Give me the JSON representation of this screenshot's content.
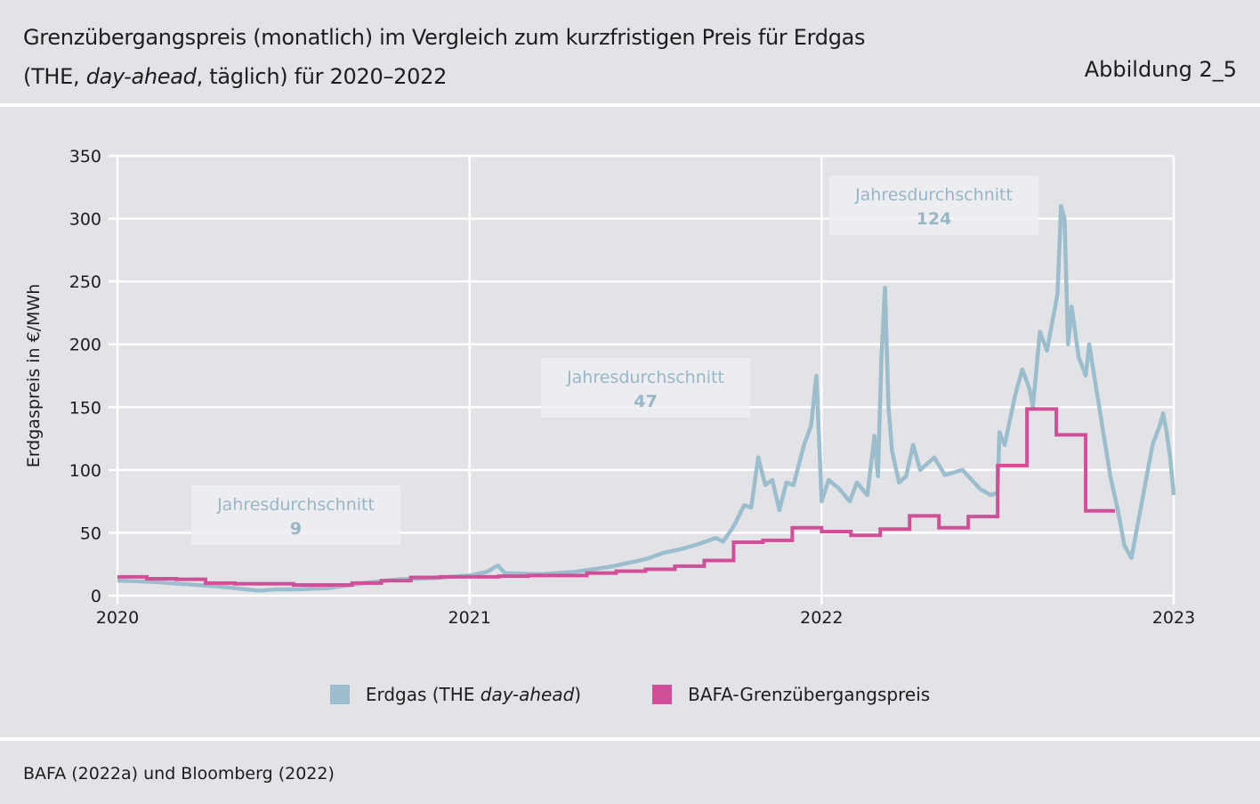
{
  "header": {
    "title_line1": "Grenzübergangspreis (monatlich) im Vergleich zum kurzfristigen Preis für Erdgas",
    "title_line2_pre": "(THE, ",
    "title_line2_italic": "day-ahead",
    "title_line2_post": ", täglich) für 2020–2022",
    "figure_label": "Abbildung 2_5"
  },
  "footer": {
    "source": "BAFA (2022a) und Bloomberg (2022)"
  },
  "legend": {
    "erdgas_pre": "Erdgas (THE ",
    "erdgas_italic": "day-ahead",
    "erdgas_post": ")",
    "bafa": "BAFA-Grenzübergangspreis"
  },
  "colors": {
    "erdgas": "#9bbdcc",
    "bafa": "#d24f97",
    "grid": "#ffffff"
  },
  "chart_data": {
    "type": "line",
    "ylabel": "Erdgaspreis in €/MWh",
    "ylim": [
      0,
      350
    ],
    "yticks": [
      "0",
      "50",
      "100",
      "150",
      "200",
      "250",
      "300",
      "350"
    ],
    "xlim": [
      2020,
      2023
    ],
    "xticks": [
      "2020",
      "2021",
      "2022",
      "2023"
    ],
    "annotations": [
      {
        "label": "Jahresdurchschnitt",
        "value": "9",
        "year": 2020
      },
      {
        "label": "Jahresdurchschnitt",
        "value": "47",
        "year": 2021
      },
      {
        "label": "Jahresdurchschnitt",
        "value": "124",
        "year": 2022
      }
    ],
    "series": [
      {
        "name": "Erdgas (THE day-ahead)",
        "type": "line",
        "x": [
          2020,
          2020.1,
          2020.2,
          2020.3,
          2020.4,
          2020.45,
          2020.5,
          2020.6,
          2020.7,
          2020.8,
          2020.9,
          2021,
          2021.05,
          2021.08,
          2021.1,
          2021.2,
          2021.3,
          2021.4,
          2021.45,
          2021.5,
          2021.55,
          2021.6,
          2021.65,
          2021.7,
          2021.72,
          2021.75,
          2021.78,
          2021.8,
          2021.82,
          2021.84,
          2021.86,
          2021.88,
          2021.9,
          2021.92,
          2021.95,
          2021.97,
          2021.985,
          2021.995,
          2022,
          2022.02,
          2022.05,
          2022.08,
          2022.1,
          2022.13,
          2022.15,
          2022.16,
          2022.17,
          2022.18,
          2022.19,
          2022.2,
          2022.22,
          2022.24,
          2022.26,
          2022.28,
          2022.32,
          2022.35,
          2022.4,
          2022.45,
          2022.48,
          2022.5,
          2022.505,
          2022.52,
          2022.55,
          2022.57,
          2022.59,
          2022.6,
          2022.62,
          2022.64,
          2022.67,
          2022.68,
          2022.69,
          2022.7,
          2022.71,
          2022.73,
          2022.75,
          2022.76,
          2022.78,
          2022.8,
          2022.82,
          2022.84,
          2022.86,
          2022.88,
          2022.9,
          2022.92,
          2022.94,
          2022.96,
          2022.97,
          2022.98,
          2022.99,
          2023
        ],
        "values": [
          12,
          11,
          9,
          7,
          4,
          5,
          5,
          6,
          10,
          13,
          14,
          16,
          19,
          24,
          18,
          17,
          19,
          23,
          26,
          29,
          34,
          37,
          41,
          46,
          43,
          55,
          72,
          70,
          110,
          88,
          92,
          68,
          90,
          88,
          120,
          135,
          175,
          110,
          75,
          92,
          85,
          75,
          90,
          80,
          127,
          95,
          190,
          245,
          150,
          115,
          90,
          95,
          120,
          100,
          110,
          96,
          100,
          85,
          80,
          82,
          130,
          120,
          160,
          180,
          165,
          150,
          210,
          195,
          240,
          310,
          300,
          200,
          230,
          190,
          175,
          200,
          165,
          130,
          95,
          70,
          40,
          30,
          60,
          90,
          120,
          135,
          145,
          130,
          110,
          80
        ]
      },
      {
        "name": "BAFA-Grenzübergangspreis",
        "type": "step",
        "months": [
          "2020-01",
          "2020-02",
          "2020-03",
          "2020-04",
          "2020-05",
          "2020-06",
          "2020-07",
          "2020-08",
          "2020-09",
          "2020-10",
          "2020-11",
          "2020-12",
          "2021-01",
          "2021-02",
          "2021-03",
          "2021-04",
          "2021-05",
          "2021-06",
          "2021-07",
          "2021-08",
          "2021-09",
          "2021-10",
          "2021-11",
          "2021-12",
          "2022-01",
          "2022-02",
          "2022-03",
          "2022-04",
          "2022-05",
          "2022-06",
          "2022-07",
          "2022-08",
          "2022-09",
          "2022-10"
        ],
        "values": [
          15,
          13.5,
          13,
          10,
          9.5,
          9.5,
          8.5,
          8.5,
          10,
          12,
          14.5,
          15,
          15,
          15.5,
          16,
          16,
          18,
          19.5,
          21,
          23.5,
          28,
          42.5,
          44,
          54,
          51,
          48,
          53,
          63.5,
          54,
          63,
          103.5,
          148.5,
          128,
          67.5
        ]
      }
    ]
  }
}
